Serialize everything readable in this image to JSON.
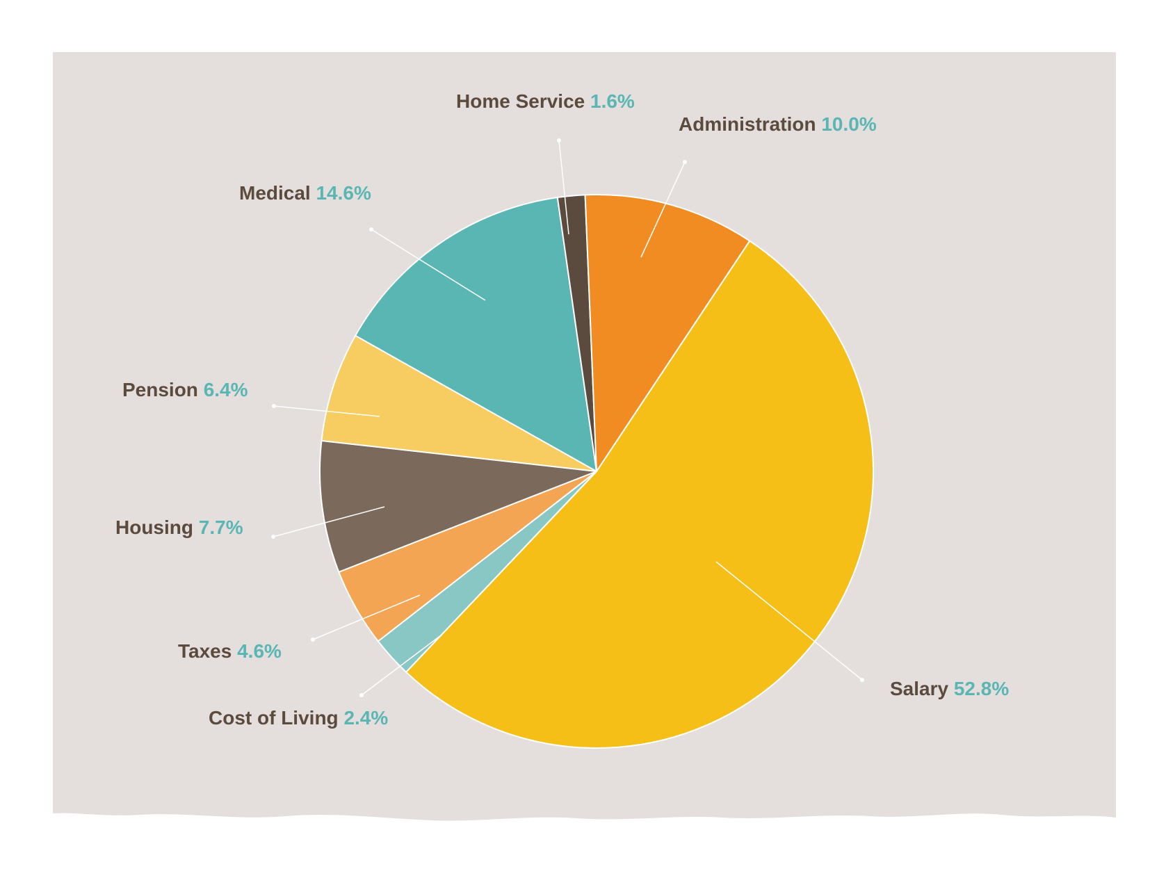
{
  "chart_data": {
    "type": "pie",
    "title": "",
    "unit": "%",
    "slices": [
      {
        "label": "Salary",
        "value": 52.8,
        "value_text": "52.8%",
        "color": "#f6bf18"
      },
      {
        "label": "Cost of Living",
        "value": 2.4,
        "value_text": "2.4%",
        "color": "#88c7c4"
      },
      {
        "label": "Taxes",
        "value": 4.6,
        "value_text": "4.6%",
        "color": "#f4a553"
      },
      {
        "label": "Housing",
        "value": 7.7,
        "value_text": "7.7%",
        "color": "#7b6a5c"
      },
      {
        "label": "Pension",
        "value": 6.4,
        "value_text": "6.4%",
        "color": "#f7cc60"
      },
      {
        "label": "Medical",
        "value": 14.6,
        "value_text": "14.6%",
        "color": "#5ab6b3"
      },
      {
        "label": "Home Service",
        "value": 1.6,
        "value_text": "1.6%",
        "color": "#5b4a3e"
      },
      {
        "label": "Administration",
        "value": 10.0,
        "value_text": "10.0%",
        "color": "#f08c22"
      }
    ],
    "legend": "none",
    "label_style": "callout-lines"
  },
  "colors": {
    "panel_background": "#e4dedd",
    "label_text": "#5b4a3e",
    "percent_text": "#5ab6b3"
  }
}
